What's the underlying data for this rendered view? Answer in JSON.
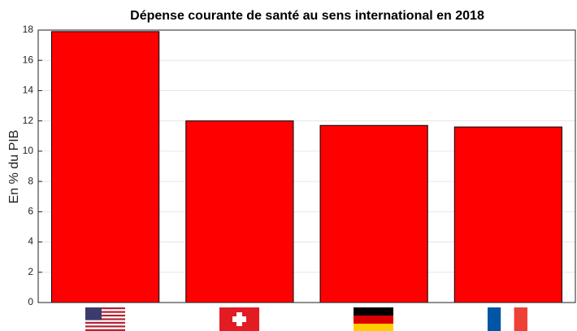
{
  "chart_data": {
    "type": "bar",
    "title": "Dépense courante de santé au sens international en 2018",
    "y_label": "En % du PIB",
    "categories": [
      null,
      null,
      null,
      null
    ],
    "values": [
      17.9,
      12.0,
      11.7,
      11.6
    ],
    "color": "#ff0000",
    "ylim": [
      0,
      18
    ],
    "yticks": [
      0,
      2,
      4,
      6,
      8,
      10,
      12,
      14,
      16,
      18
    ],
    "grid": true
  }
}
